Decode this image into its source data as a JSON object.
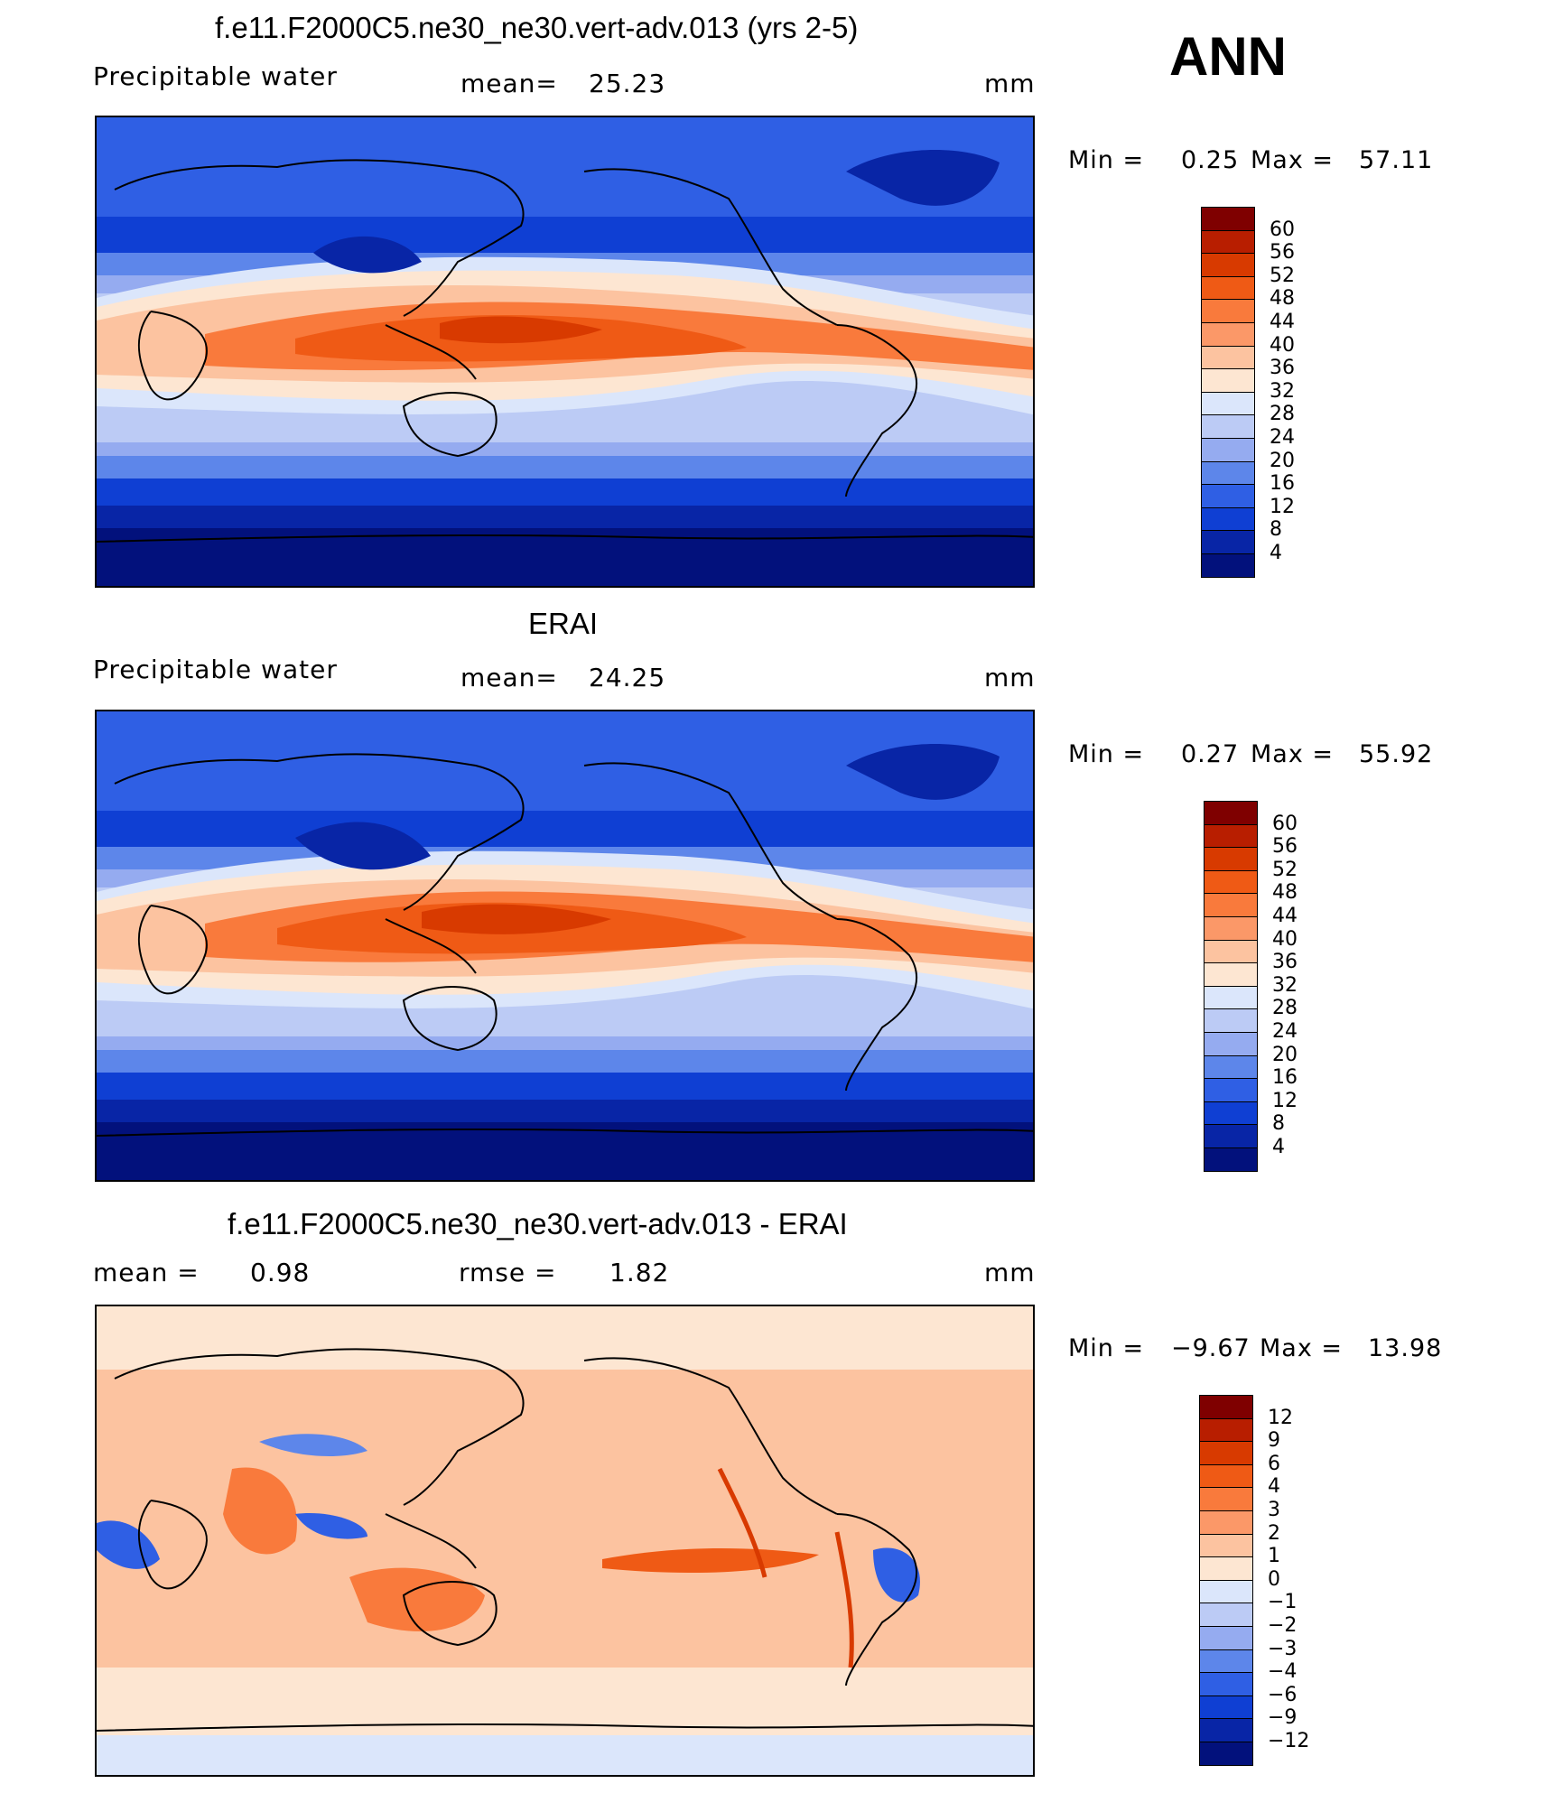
{
  "page_title": "ANN",
  "chart_data": [
    {
      "type": "heatmap",
      "title": "f.e11.F2000C5.ne30_ne30.vert-adv.013 (yrs 2-5)",
      "variable": "Precipitable water",
      "mean_label": "mean=",
      "mean": "25.23",
      "units": "mm",
      "min_label": "Min =",
      "min": "0.25",
      "max_label": "Max =",
      "max": "57.11",
      "colorbar": {
        "levels": [
          "60",
          "56",
          "52",
          "48",
          "44",
          "40",
          "36",
          "32",
          "28",
          "24",
          "20",
          "16",
          "12",
          "8",
          "4"
        ],
        "colors": [
          "#7f0000",
          "#b81e00",
          "#d83a00",
          "#ef5a15",
          "#f97a3c",
          "#fb9868",
          "#fcc3a0",
          "#fde6d2",
          "#dbe6fb",
          "#bccbf5",
          "#95abf0",
          "#5d86ea",
          "#2f5fe4",
          "#0f3fd3",
          "#0825a6",
          "#02117c"
        ]
      }
    },
    {
      "type": "heatmap",
      "title": "ERAI",
      "variable": "Precipitable water",
      "mean_label": "mean=",
      "mean": "24.25",
      "units": "mm",
      "min_label": "Min =",
      "min": "0.27",
      "max_label": "Max =",
      "max": "55.92",
      "colorbar": {
        "levels": [
          "60",
          "56",
          "52",
          "48",
          "44",
          "40",
          "36",
          "32",
          "28",
          "24",
          "20",
          "16",
          "12",
          "8",
          "4"
        ],
        "colors": [
          "#7f0000",
          "#b81e00",
          "#d83a00",
          "#ef5a15",
          "#f97a3c",
          "#fb9868",
          "#fcc3a0",
          "#fde6d2",
          "#dbe6fb",
          "#bccbf5",
          "#95abf0",
          "#5d86ea",
          "#2f5fe4",
          "#0f3fd3",
          "#0825a6",
          "#02117c"
        ]
      }
    },
    {
      "type": "heatmap",
      "title": "f.e11.F2000C5.ne30_ne30.vert-adv.013 - ERAI",
      "mean_label": "mean =",
      "mean": "0.98",
      "rmse_label": "rmse =",
      "rmse": "1.82",
      "units": "mm",
      "min_label": "Min =",
      "min": "−9.67",
      "max_label": "Max =",
      "max": "13.98",
      "colorbar": {
        "levels": [
          "12",
          "9",
          "6",
          "4",
          "3",
          "2",
          "1",
          "0",
          "−1",
          "−2",
          "−3",
          "−4",
          "−6",
          "−9",
          "−12"
        ],
        "colors": [
          "#7f0000",
          "#b81e00",
          "#d83a00",
          "#ef5a15",
          "#f97a3c",
          "#fb9868",
          "#fcc3a0",
          "#fde6d2",
          "#dbe6fb",
          "#bccbf5",
          "#95abf0",
          "#5d86ea",
          "#2f5fe4",
          "#0f3fd3",
          "#0825a6",
          "#02117c"
        ]
      }
    }
  ]
}
